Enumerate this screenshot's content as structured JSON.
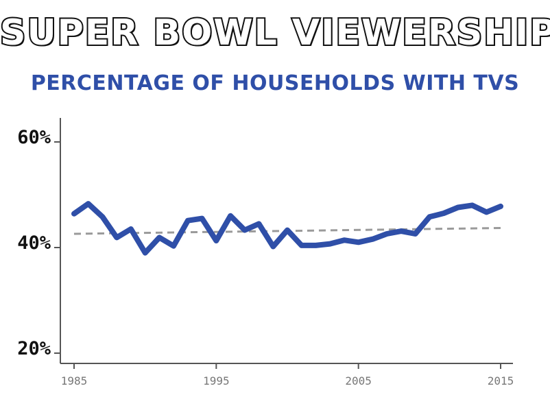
{
  "header": {
    "title": "SUPER BOWL VIEWERSHIP",
    "subtitle": "PERCENTAGE OF HOUSEHOLDS WITH TVS"
  },
  "colors": {
    "series": "#2f4fa8",
    "trend": "#9a9a9a",
    "axis": "#555555"
  },
  "chart_data": {
    "type": "line",
    "title": "SUPER BOWL VIEWERSHIP",
    "subtitle": "PERCENTAGE OF HOUSEHOLDS WITH TVS",
    "xlabel": "",
    "ylabel": "",
    "xlim": [
      1985,
      2015
    ],
    "ylim": [
      18,
      64
    ],
    "grid": false,
    "legend": "none",
    "x_ticks": [
      1985,
      1995,
      2005,
      2015
    ],
    "x_tick_labels": [
      "1985",
      "1995",
      "2005",
      "2015"
    ],
    "y_ticks": [
      20,
      40,
      60
    ],
    "y_tick_labels": [
      "20%",
      "40%",
      "60%"
    ],
    "x": [
      1985,
      1986,
      1987,
      1988,
      1989,
      1990,
      1991,
      1992,
      1993,
      1994,
      1995,
      1996,
      1997,
      1998,
      1999,
      2000,
      2001,
      2002,
      2003,
      2004,
      2005,
      2006,
      2007,
      2008,
      2009,
      2010,
      2011,
      2012,
      2013,
      2014,
      2015
    ],
    "series": [
      {
        "values": [
          46.4,
          48.3,
          45.8,
          41.9,
          43.5,
          39.0,
          41.9,
          40.3,
          45.1,
          45.5,
          41.3,
          46.0,
          43.3,
          44.5,
          40.2,
          43.3,
          40.4,
          40.4,
          40.7,
          41.4,
          41.0,
          41.6,
          42.6,
          43.1,
          42.6,
          45.8,
          46.5,
          47.6,
          48.0,
          46.7,
          47.8
        ]
      }
    ],
    "trendline": {
      "style": "dashed",
      "x": [
        1985,
        2015
      ],
      "values": [
        42.6,
        43.7
      ]
    }
  }
}
